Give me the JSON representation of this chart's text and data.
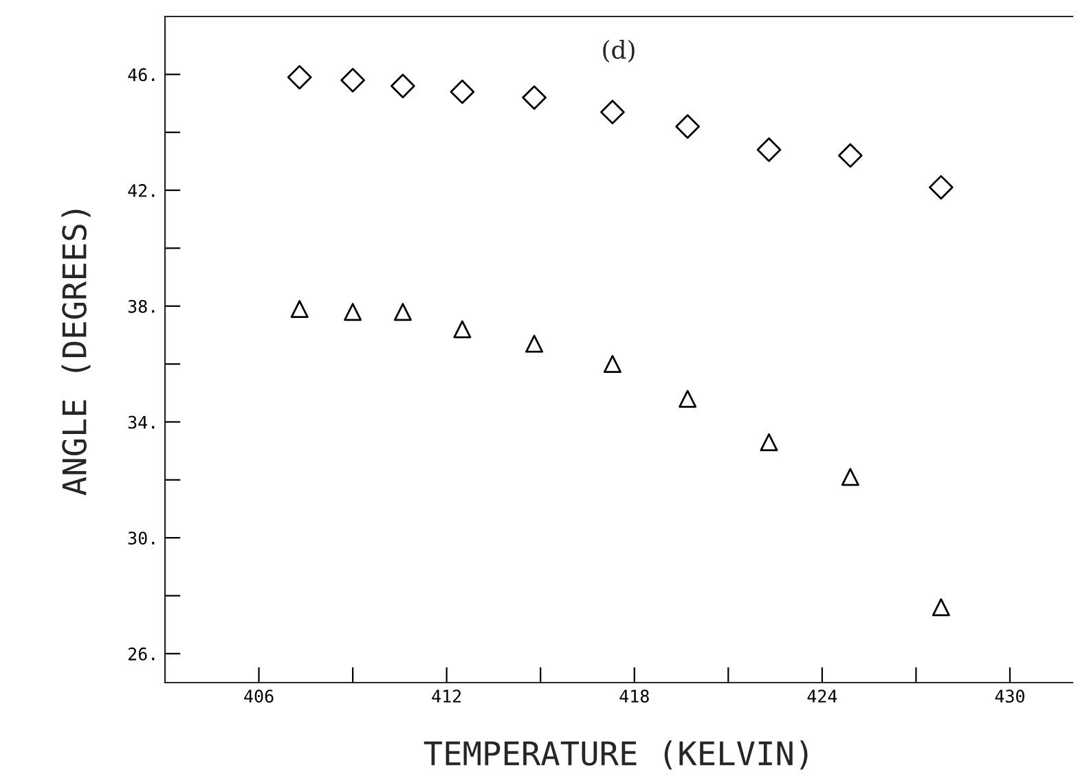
{
  "chart_data": {
    "type": "scatter",
    "xlabel": "TEMPERATURE (KELVIN)",
    "ylabel": "ANGLE (DEGREES)",
    "annotations": [
      "(d)"
    ],
    "xlim": [
      403,
      432
    ],
    "ylim": [
      25,
      48
    ],
    "xticks": [
      406,
      {
        "value": 409,
        "label": null
      },
      412,
      {
        "value": 415,
        "label": null
      },
      418,
      {
        "value": 421,
        "label": null
      },
      424,
      {
        "value": 427,
        "label": null
      },
      430
    ],
    "yticks": [
      {
        "value": 26,
        "label": "26."
      },
      {
        "value": 28,
        "label": null
      },
      {
        "value": 30,
        "label": "30."
      },
      {
        "value": 32,
        "label": null
      },
      {
        "value": 34,
        "label": "34."
      },
      {
        "value": 36,
        "label": null
      },
      {
        "value": 38,
        "label": "38."
      },
      {
        "value": 40,
        "label": null
      },
      {
        "value": 42,
        "label": "42."
      },
      {
        "value": 44,
        "label": null
      },
      {
        "value": 46,
        "label": "46."
      }
    ],
    "grid": false,
    "legend": false,
    "series": [
      {
        "color": "#000000",
        "marker": "diamond",
        "x": [
          407.3,
          409.0,
          410.6,
          412.5,
          414.8,
          417.3,
          419.7,
          422.3,
          424.9,
          427.8
        ],
        "values": [
          45.9,
          45.8,
          45.6,
          45.4,
          45.2,
          44.7,
          44.2,
          43.4,
          43.2,
          42.1
        ]
      },
      {
        "color": "#000000",
        "marker": "triangle",
        "x": [
          407.3,
          409.0,
          410.6,
          412.5,
          414.8,
          417.3,
          419.7,
          422.3,
          424.9,
          427.8
        ],
        "values": [
          37.9,
          37.8,
          37.8,
          37.2,
          36.7,
          36.0,
          34.8,
          33.3,
          32.1,
          27.6
        ]
      }
    ]
  }
}
